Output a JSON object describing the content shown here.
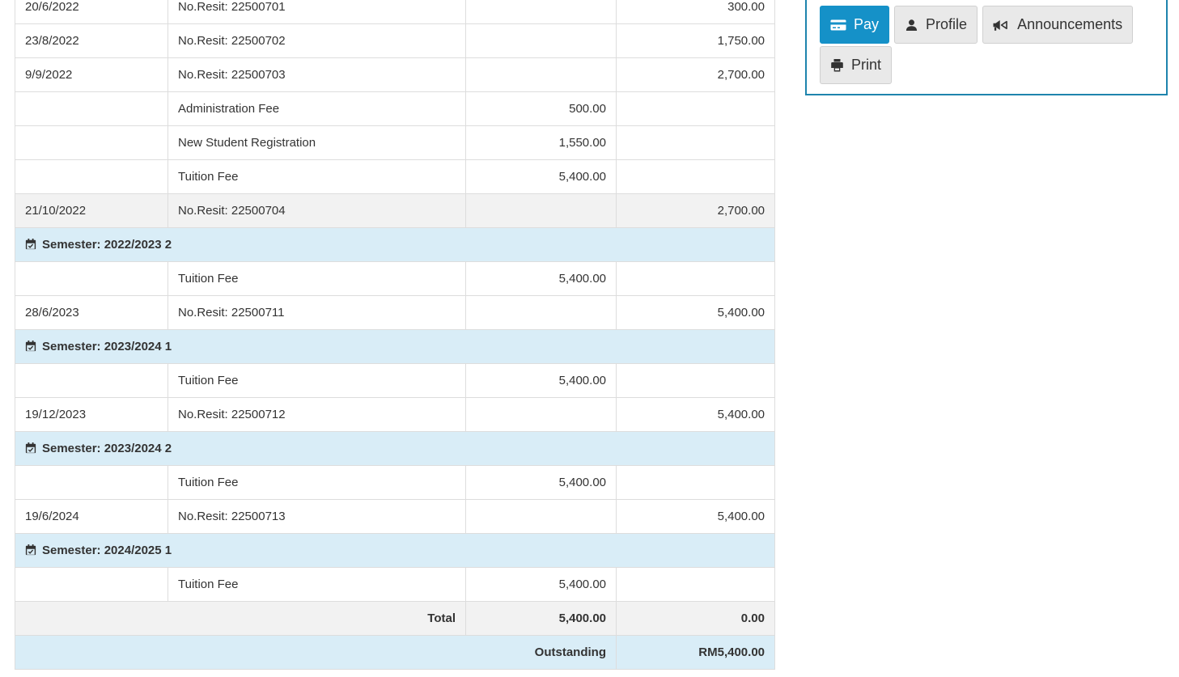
{
  "table": {
    "semester_icon": "calendar-check-icon",
    "rows": [
      {
        "type": "entry",
        "date": "20/6/2022",
        "description": "No.Resit: 22500701",
        "debit": "",
        "credit": "300.00",
        "shaded": false
      },
      {
        "type": "entry",
        "date": "23/8/2022",
        "description": "No.Resit: 22500702",
        "debit": "",
        "credit": "1,750.00",
        "shaded": false
      },
      {
        "type": "entry",
        "date": "9/9/2022",
        "description": "No.Resit: 22500703",
        "debit": "",
        "credit": "2,700.00",
        "shaded": false
      },
      {
        "type": "entry",
        "date": "",
        "description": "Administration Fee",
        "debit": "500.00",
        "credit": "",
        "shaded": false
      },
      {
        "type": "entry",
        "date": "",
        "description": "New Student Registration",
        "debit": "1,550.00",
        "credit": "",
        "shaded": false
      },
      {
        "type": "entry",
        "date": "",
        "description": "Tuition Fee",
        "debit": "5,400.00",
        "credit": "",
        "shaded": false
      },
      {
        "type": "entry",
        "date": "21/10/2022",
        "description": "No.Resit: 22500704",
        "debit": "",
        "credit": "2,700.00",
        "shaded": true
      },
      {
        "type": "semester",
        "label": "Semester: 2022/2023 2"
      },
      {
        "type": "entry",
        "date": "",
        "description": "Tuition Fee",
        "debit": "5,400.00",
        "credit": "",
        "shaded": false
      },
      {
        "type": "entry",
        "date": "28/6/2023",
        "description": "No.Resit: 22500711",
        "debit": "",
        "credit": "5,400.00",
        "shaded": false
      },
      {
        "type": "semester",
        "label": "Semester: 2023/2024 1"
      },
      {
        "type": "entry",
        "date": "",
        "description": "Tuition Fee",
        "debit": "5,400.00",
        "credit": "",
        "shaded": false
      },
      {
        "type": "entry",
        "date": "19/12/2023",
        "description": "No.Resit: 22500712",
        "debit": "",
        "credit": "5,400.00",
        "shaded": false
      },
      {
        "type": "semester",
        "label": "Semester: 2023/2024 2"
      },
      {
        "type": "entry",
        "date": "",
        "description": "Tuition Fee",
        "debit": "5,400.00",
        "credit": "",
        "shaded": false
      },
      {
        "type": "entry",
        "date": "19/6/2024",
        "description": "No.Resit: 22500713",
        "debit": "",
        "credit": "5,400.00",
        "shaded": false
      },
      {
        "type": "semester",
        "label": "Semester: 2024/2025 1"
      },
      {
        "type": "entry",
        "date": "",
        "description": "Tuition Fee",
        "debit": "5,400.00",
        "credit": "",
        "shaded": false
      }
    ],
    "total": {
      "label": "Total",
      "debit": "5,400.00",
      "credit": "0.00"
    },
    "outstanding": {
      "label": "Outstanding",
      "value": "RM5,400.00"
    }
  },
  "actions": {
    "buttons": [
      {
        "label": "Pay",
        "icon": "credit-card-icon",
        "style": "primary"
      },
      {
        "label": "Profile",
        "icon": "user-icon",
        "style": "default"
      },
      {
        "label": "Announcements",
        "icon": "bullhorn-icon",
        "style": "default"
      },
      {
        "label": "Print",
        "icon": "print-icon",
        "style": "default"
      }
    ]
  },
  "colors": {
    "accent_blue": "#1591c8",
    "panel_border": "#1e84ad",
    "highlight_row_bg": "#f2f2f2",
    "semester_row_bg": "#d9edf7",
    "table_border": "#dddddd",
    "text": "#333333"
  }
}
